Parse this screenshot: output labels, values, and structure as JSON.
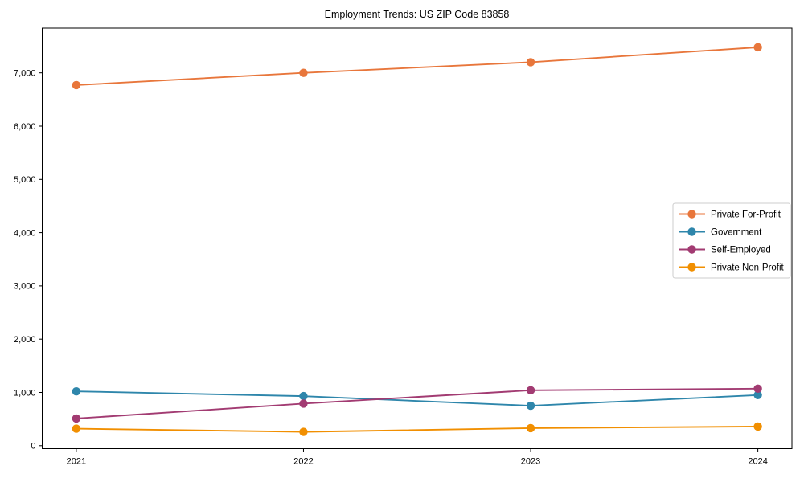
{
  "chart_data": {
    "type": "line",
    "title": "Employment Trends: US ZIP Code 83858",
    "xlabel": "",
    "ylabel": "",
    "x": [
      2021,
      2022,
      2023,
      2024
    ],
    "x_tick_labels": [
      "2021",
      "2022",
      "2023",
      "2024"
    ],
    "series": [
      {
        "name": "Private For-Profit",
        "color": "#E8763B",
        "values": [
          6770,
          7000,
          7200,
          7480
        ]
      },
      {
        "name": "Government",
        "color": "#2E86AB",
        "values": [
          1020,
          930,
          750,
          950
        ]
      },
      {
        "name": "Self-Employed",
        "color": "#A23B72",
        "values": [
          510,
          790,
          1040,
          1070
        ]
      },
      {
        "name": "Private Non-Profit",
        "color": "#F18F01",
        "values": [
          320,
          260,
          330,
          360
        ]
      }
    ],
    "yticks": [
      0,
      1000,
      2000,
      3000,
      4000,
      5000,
      6000,
      7000
    ],
    "ytick_labels": [
      "0",
      "1,000",
      "2,000",
      "3,000",
      "4,000",
      "5,000",
      "6,000",
      "7,000"
    ],
    "ylim": [
      -56,
      7840
    ],
    "xlim": [
      2020.85,
      2024.15
    ],
    "grid": false,
    "legend_position": "center-right",
    "marker": "circle",
    "axis_color": "#000000",
    "legend_border_color": "#cccccc",
    "legend_background": "#ffffff"
  }
}
